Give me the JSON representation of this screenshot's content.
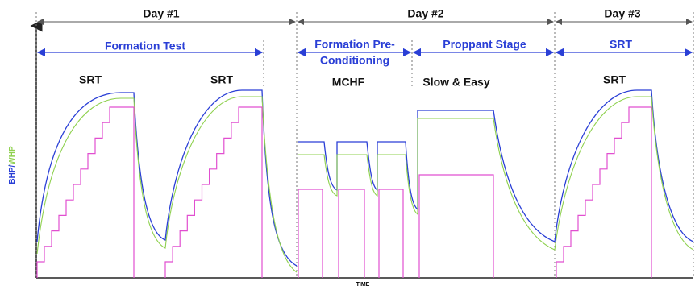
{
  "days": [
    "Day #1",
    "Day #2",
    "Day #3"
  ],
  "stages": {
    "formation_test": "Formation Test",
    "pre_conditioning": [
      "Formation Pre-",
      "Conditioning"
    ],
    "proppant": "Proppant Stage",
    "srt": "SRT"
  },
  "annotations": [
    "SRT",
    "SRT",
    "MCHF",
    "Slow & Easy",
    "SRT"
  ],
  "y_axis": {
    "bhp": "BHP",
    "slash": "/",
    "whp": "WHP"
  },
  "x_axis": "TIME"
}
